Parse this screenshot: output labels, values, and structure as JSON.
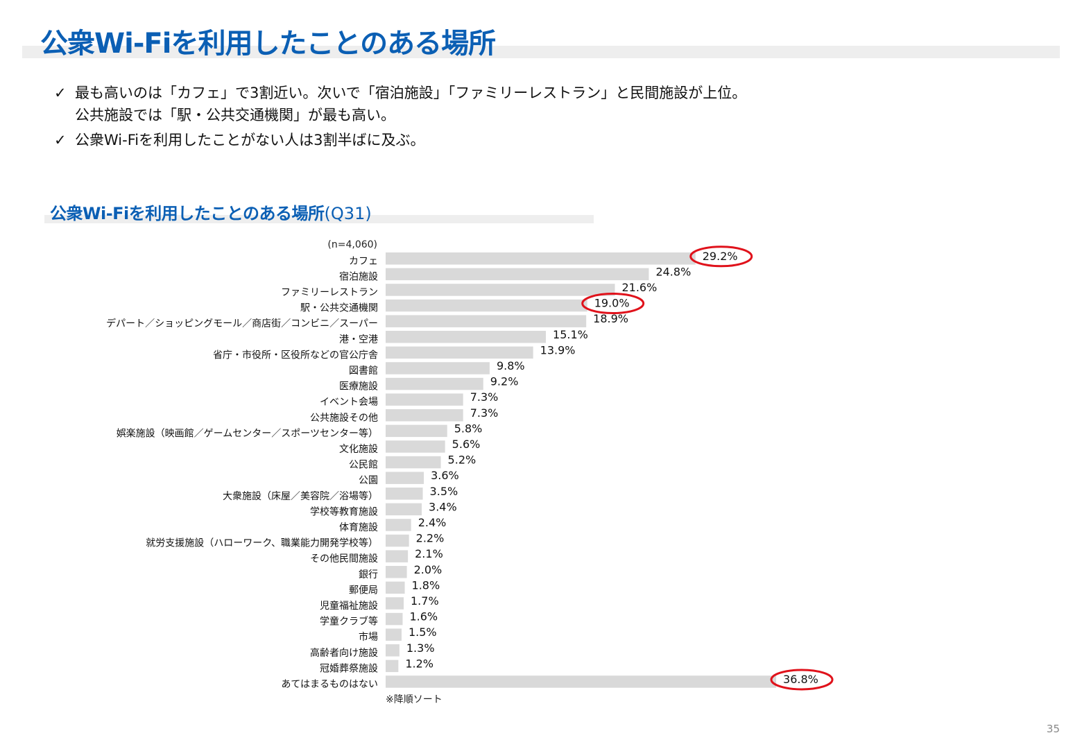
{
  "page_title": "公衆Wi-Fiを利用したことのある場所",
  "bullets": [
    {
      "mark": "✓",
      "lines": [
        "最も高いのは「カフェ」で3割近い。次いで「宿泊施設」「ファミリーレストラン」と民間施設が上位。",
        "公共施設では「駅・公共交通機関」が最も高い。"
      ]
    },
    {
      "mark": "✓",
      "lines": [
        "公衆Wi-Fiを利用したことがない人は3割半ばに及ぶ。"
      ]
    }
  ],
  "chart_title": {
    "main": "公衆Wi-Fiを利用したことのある場所",
    "code": "(Q31)"
  },
  "n_label": "(n=4,060)",
  "note": "※降順ソート",
  "page_number": "35",
  "colors": {
    "accent": "#0b5fb4",
    "bar": "#d9d9d9",
    "highlight": "#e0121b",
    "band": "#eeeeee"
  },
  "chart_data": {
    "type": "bar",
    "orientation": "horizontal",
    "title": "公衆Wi-Fiを利用したことのある場所(Q31)",
    "unit": "%",
    "categories": [
      "カフェ",
      "宿泊施設",
      "ファミリーレストラン",
      "駅・公共交通機関",
      "デパート／ショッピングモール／商店街／コンビニ／スーパー",
      "港・空港",
      "省庁・市役所・区役所などの官公庁舎",
      "図書館",
      "医療施設",
      "イベント会場",
      "公共施設その他",
      "娯楽施設（映画館／ゲームセンター／スポーツセンター等）",
      "文化施設",
      "公民館",
      "公園",
      "大衆施設（床屋／美容院／浴場等）",
      "学校等教育施設",
      "体育施設",
      "就労支援施設（ハローワーク、職業能力開発学校等）",
      "その他民間施設",
      "銀行",
      "郵便局",
      "児童福祉施設",
      "学童クラブ等",
      "市場",
      "高齢者向け施設",
      "冠婚葬祭施設",
      "あてはまるものはない"
    ],
    "values": [
      29.2,
      24.8,
      21.6,
      19.0,
      18.9,
      15.1,
      13.9,
      9.8,
      9.2,
      7.3,
      7.3,
      5.8,
      5.6,
      5.2,
      3.6,
      3.5,
      3.4,
      2.4,
      2.2,
      2.1,
      2.0,
      1.8,
      1.7,
      1.6,
      1.5,
      1.3,
      1.2,
      36.8
    ],
    "labels": [
      "29.2%",
      "24.8%",
      "21.6%",
      "19.0%",
      "18.9%",
      "15.1%",
      "13.9%",
      "9.8%",
      "9.2%",
      "7.3%",
      "7.3%",
      "5.8%",
      "5.6%",
      "5.2%",
      "3.6%",
      "3.5%",
      "3.4%",
      "2.4%",
      "2.2%",
      "2.1%",
      "2.0%",
      "1.8%",
      "1.7%",
      "1.6%",
      "1.5%",
      "1.3%",
      "1.2%",
      "36.8%"
    ],
    "highlighted": [
      "カフェ",
      "駅・公共交通機関",
      "あてはまるものはない"
    ],
    "sorted": "descending",
    "grid": false,
    "axis_visible": false
  }
}
